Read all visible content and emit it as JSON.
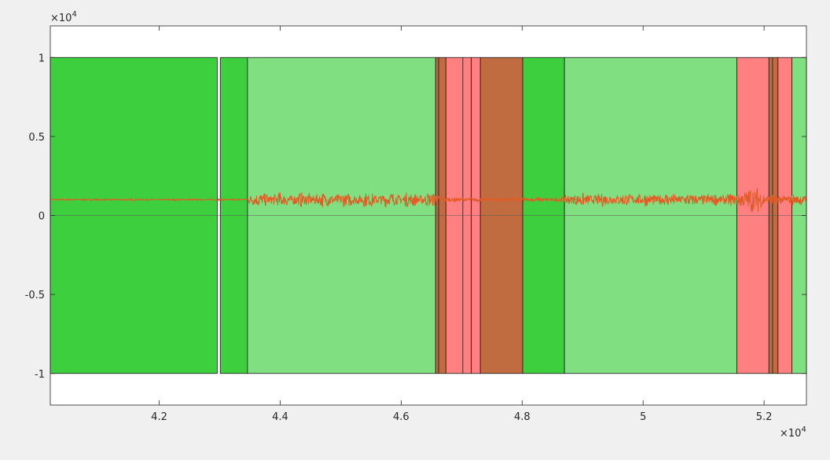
{
  "chart_data": {
    "type": "area",
    "title": "",
    "xlabel": "",
    "ylabel": "",
    "xlim": [
      40200,
      52700
    ],
    "ylim": [
      -12000,
      12000
    ],
    "x_exponent_label": {
      "base": "×10",
      "exp": "4"
    },
    "y_exponent_label": {
      "base": "×10",
      "exp": "4"
    },
    "x_ticks": [
      {
        "value": 42000,
        "label": "4.2"
      },
      {
        "value": 44000,
        "label": "4.4"
      },
      {
        "value": 46000,
        "label": "4.6"
      },
      {
        "value": 48000,
        "label": "4.8"
      },
      {
        "value": 50000,
        "label": "5"
      },
      {
        "value": 52000,
        "label": "5.2"
      }
    ],
    "y_ticks": [
      {
        "value": 10000,
        "label": "1"
      },
      {
        "value": 5000,
        "label": "0.5"
      },
      {
        "value": 0,
        "label": "0"
      },
      {
        "value": -5000,
        "label": "-0.5"
      },
      {
        "value": -10000,
        "label": "-1"
      }
    ],
    "grid": false,
    "colors": {
      "dark_green": "#3ecf3e",
      "light_green": "#80df80",
      "salmon": "#ff8080",
      "brown": "#c06c40",
      "signal": "#e35b23",
      "band_edge": "#1a1a1a"
    },
    "regions": [
      {
        "x0": 40200,
        "x1": 42960,
        "color": "dark_green"
      },
      {
        "x0": 43010,
        "x1": 43460,
        "color": "dark_green"
      },
      {
        "x0": 43460,
        "x1": 46570,
        "color": "light_green"
      },
      {
        "x0": 46570,
        "x1": 46620,
        "color": "brown"
      },
      {
        "x0": 46620,
        "x1": 46740,
        "color": "brown"
      },
      {
        "x0": 46740,
        "x1": 47020,
        "color": "salmon"
      },
      {
        "x0": 47020,
        "x1": 47160,
        "color": "salmon"
      },
      {
        "x0": 47160,
        "x1": 47310,
        "color": "salmon"
      },
      {
        "x0": 47310,
        "x1": 48010,
        "color": "brown"
      },
      {
        "x0": 48010,
        "x1": 48700,
        "color": "dark_green"
      },
      {
        "x0": 48700,
        "x1": 51550,
        "color": "light_green"
      },
      {
        "x0": 51550,
        "x1": 52080,
        "color": "salmon"
      },
      {
        "x0": 52080,
        "x1": 52140,
        "color": "brown"
      },
      {
        "x0": 52140,
        "x1": 52230,
        "color": "brown"
      },
      {
        "x0": 52230,
        "x1": 52460,
        "color": "salmon"
      },
      {
        "x0": 52460,
        "x1": 52700,
        "color": "light_green"
      }
    ],
    "series": [
      {
        "color": "signal",
        "baseline": 1000,
        "segments": [
          {
            "x0": 40200,
            "x1": 43480,
            "amplitude": 60
          },
          {
            "x0": 43480,
            "x1": 46650,
            "amplitude": 500
          },
          {
            "x0": 46650,
            "x1": 48700,
            "amplitude": 150
          },
          {
            "x0": 48700,
            "x1": 51600,
            "amplitude": 450
          },
          {
            "x0": 51600,
            "x1": 52000,
            "amplitude": 900
          },
          {
            "x0": 52000,
            "x1": 52700,
            "amplitude": 400
          }
        ]
      }
    ]
  }
}
